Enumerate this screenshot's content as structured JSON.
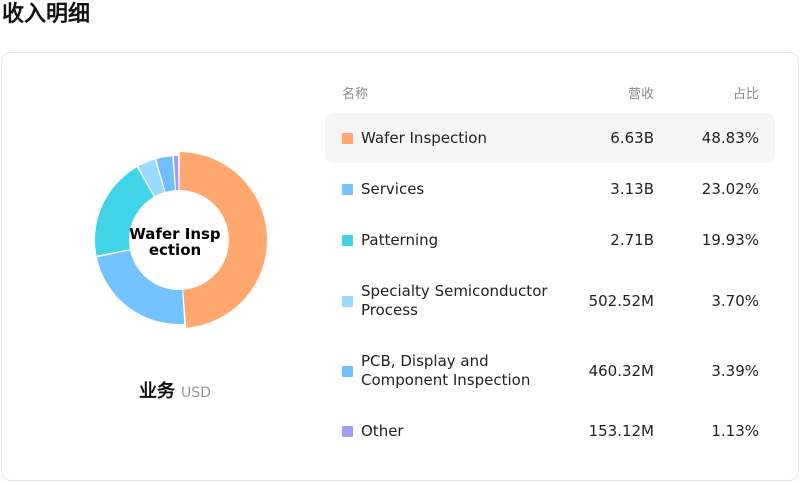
{
  "page": {
    "title": "收入明细"
  },
  "table": {
    "headers": {
      "name": "名称",
      "revenue": "营收",
      "share": "占比"
    }
  },
  "caption": {
    "label": "业务",
    "unit": "USD"
  },
  "center_label": "Wafer Inspection",
  "chart_data": {
    "type": "pie",
    "categories": [
      "Wafer Inspection",
      "Services",
      "Patterning",
      "Specialty Semiconductor Process",
      "PCB, Display and Component Inspection",
      "Other"
    ],
    "values": [
      48.83,
      23.02,
      19.93,
      3.7,
      3.39,
      1.13
    ],
    "revenue_labels": [
      "6.63B",
      "3.13B",
      "2.71B",
      "502.52M",
      "460.32M",
      "153.12M"
    ],
    "share_labels": [
      "48.83%",
      "23.02%",
      "19.93%",
      "3.70%",
      "3.39%",
      "1.13%"
    ],
    "colors": [
      "#FFA76F",
      "#72C3FF",
      "#41D3E8",
      "#9ADAFF",
      "#6EBFFB",
      "#9E9DF2"
    ],
    "highlighted_index": 0
  }
}
